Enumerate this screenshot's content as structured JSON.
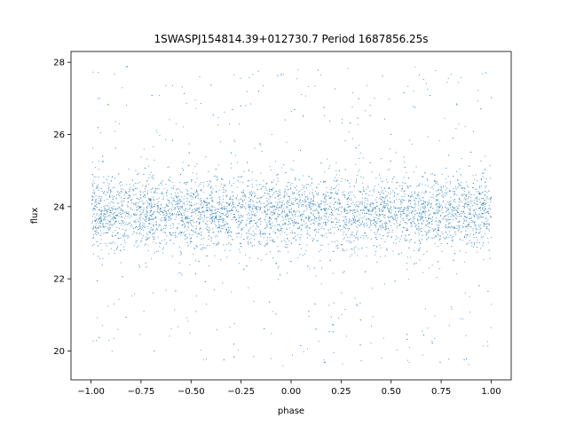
{
  "chart_data": {
    "type": "scatter",
    "title": "1SWASPJ154814.39+012730.7 Period 1687856.25s",
    "xlabel": "phase",
    "ylabel": "flux",
    "xlim": [
      -1.1,
      1.1
    ],
    "ylim": [
      19.2,
      28.3
    ],
    "x_ticks": [
      -1.0,
      -0.75,
      -0.5,
      -0.25,
      0.0,
      0.25,
      0.5,
      0.75,
      1.0
    ],
    "x_tick_labels": [
      "−1.00",
      "−0.75",
      "−0.50",
      "−0.25",
      "0.00",
      "0.25",
      "0.50",
      "0.75",
      "1.00"
    ],
    "y_ticks": [
      20,
      22,
      24,
      26,
      28
    ],
    "y_tick_labels": [
      "20",
      "22",
      "24",
      "26",
      "28"
    ],
    "grid": false,
    "legend": "none",
    "marker_color": "#1f77b4",
    "series": [
      {
        "x_range": [
          -1.0,
          1.0
        ],
        "y_core_mean": 23.85,
        "y_core_spread": [
          22.8,
          24.8
        ],
        "y_full_range": [
          19.6,
          27.9
        ],
        "folded_period_repeats": true
      }
    ]
  }
}
